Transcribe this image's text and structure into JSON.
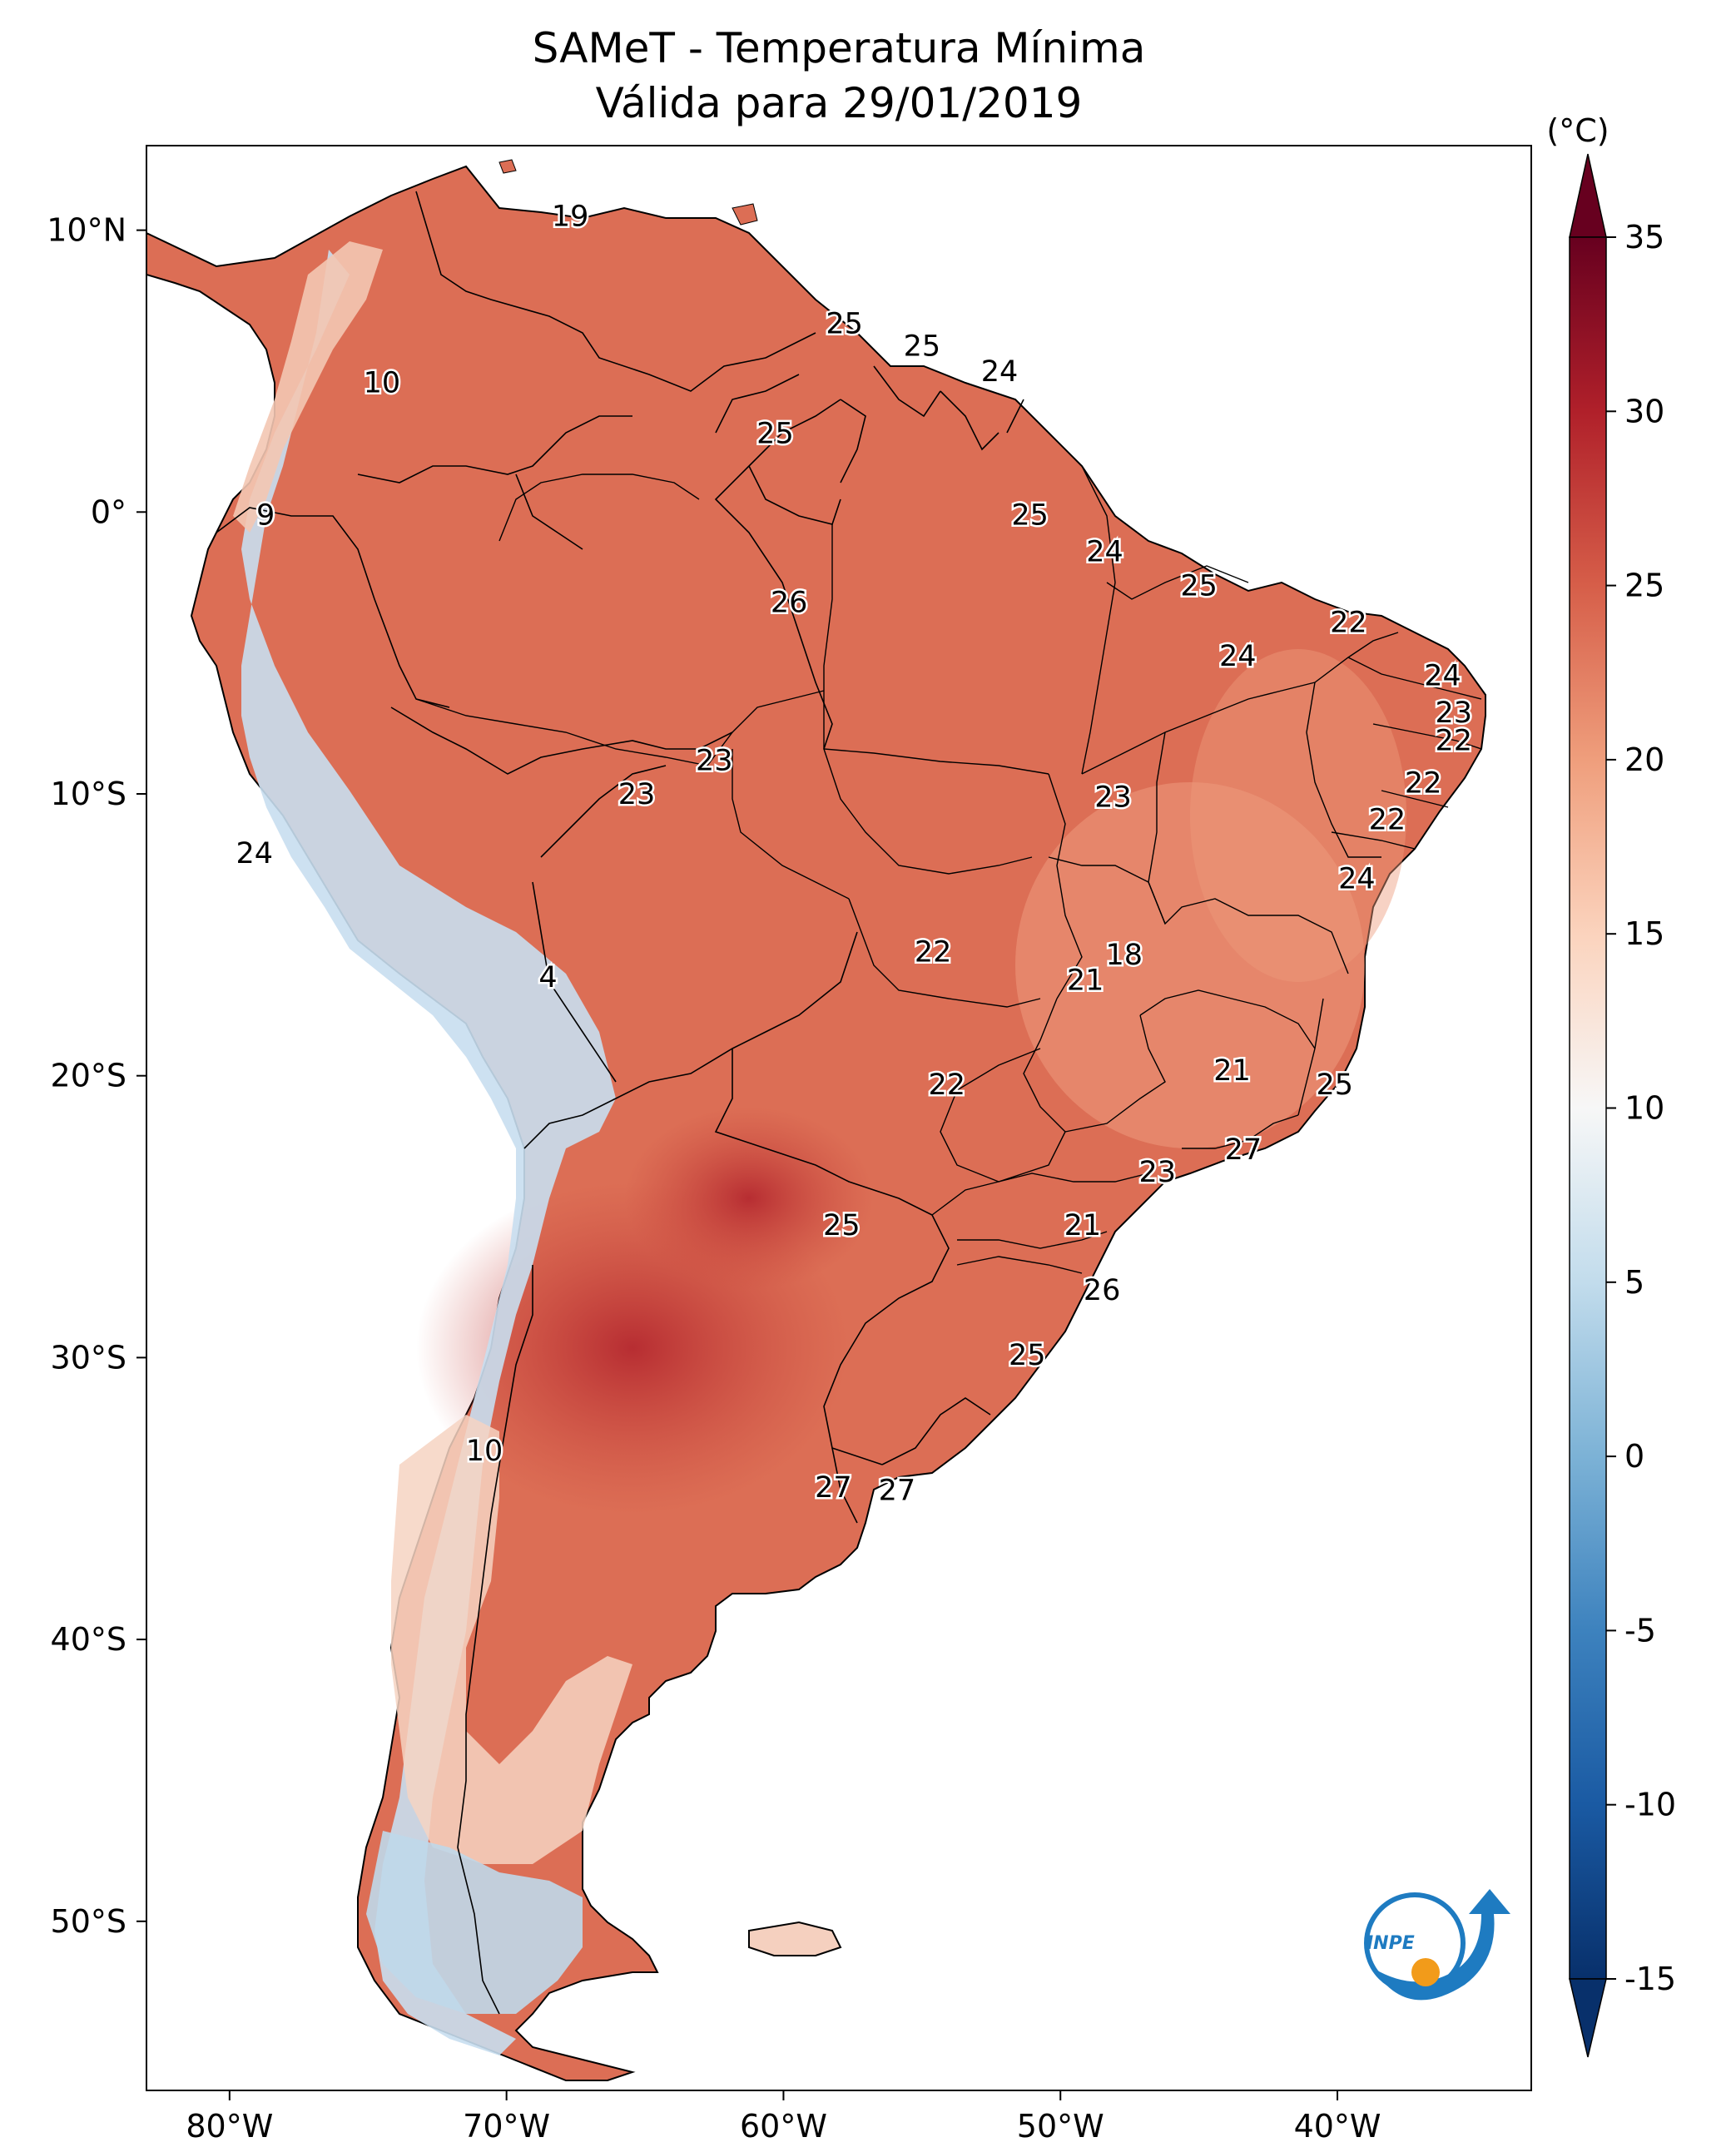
{
  "title_line1": "SAMeT - Temperatura Mínima",
  "title_line2": "Válida para 29/01/2019",
  "colorbar": {
    "unit_label": "(°C)",
    "ticks": [
      "35",
      "30",
      "25",
      "20",
      "15",
      "10",
      "5",
      "0",
      "-5",
      "-10",
      "-15"
    ],
    "min": -15,
    "max": 35,
    "colors": {
      "-15": "#08306b",
      "-10": "#1a5aa3",
      "-5": "#3d82be",
      "0": "#7cb2d6",
      "5": "#c2dcec",
      "10": "#f7f7f7",
      "15": "#fbd3bd",
      "20": "#ef9e7c",
      "25": "#d65e49",
      "30": "#b0202a",
      "35": "#67001f"
    }
  },
  "map": {
    "lon_range": [
      -83,
      -33
    ],
    "lat_range": [
      -56,
      13
    ],
    "lon_ticks": [
      "80°W",
      "70°W",
      "60°W",
      "50°W",
      "40°W"
    ],
    "lat_ticks": [
      "10°N",
      "0°",
      "10°S",
      "20°S",
      "30°S",
      "40°S",
      "50°S"
    ],
    "land_colors": {
      "warm": "#dc6e55",
      "hot": "#c9463c",
      "cool": "#f3c7b2",
      "cold": "#bcd7ea",
      "mild": "#f0a98b"
    }
  },
  "logo": {
    "text": "INPE",
    "blue": "#1e7bc1",
    "orange": "#f29b1a"
  },
  "station_labels": [
    {
      "value": "19",
      "lon": -67.7,
      "lat": 10.5
    },
    {
      "value": "10",
      "lon": -74.5,
      "lat": 4.6
    },
    {
      "value": "25",
      "lon": -57.8,
      "lat": 6.7
    },
    {
      "value": "25",
      "lon": -55.0,
      "lat": 5.9
    },
    {
      "value": "24",
      "lon": -52.2,
      "lat": 5.0
    },
    {
      "value": "25",
      "lon": -60.3,
      "lat": 2.8
    },
    {
      "value": "9",
      "lon": -78.7,
      "lat": -0.1
    },
    {
      "value": "25",
      "lon": -51.1,
      "lat": -0.1
    },
    {
      "value": "24",
      "lon": -48.4,
      "lat": -1.4
    },
    {
      "value": "26",
      "lon": -59.8,
      "lat": -3.2
    },
    {
      "value": "25",
      "lon": -45.0,
      "lat": -2.6
    },
    {
      "value": "22",
      "lon": -39.6,
      "lat": -3.9
    },
    {
      "value": "24",
      "lon": -43.6,
      "lat": -5.1
    },
    {
      "value": "24",
      "lon": -36.2,
      "lat": -5.8
    },
    {
      "value": "23",
      "lon": -35.8,
      "lat": -7.1
    },
    {
      "value": "22",
      "lon": -35.8,
      "lat": -8.1
    },
    {
      "value": "23",
      "lon": -62.5,
      "lat": -8.8
    },
    {
      "value": "23",
      "lon": -65.3,
      "lat": -10.0
    },
    {
      "value": "23",
      "lon": -48.1,
      "lat": -10.1
    },
    {
      "value": "22",
      "lon": -36.9,
      "lat": -9.6
    },
    {
      "value": "22",
      "lon": -38.2,
      "lat": -10.9
    },
    {
      "value": "24",
      "lon": -79.1,
      "lat": -12.1
    },
    {
      "value": "24",
      "lon": -39.3,
      "lat": -13.0
    },
    {
      "value": "4",
      "lon": -68.5,
      "lat": -16.5
    },
    {
      "value": "22",
      "lon": -54.6,
      "lat": -15.6
    },
    {
      "value": "18",
      "lon": -47.7,
      "lat": -15.7
    },
    {
      "value": "21",
      "lon": -49.1,
      "lat": -16.6
    },
    {
      "value": "22",
      "lon": -54.1,
      "lat": -20.3
    },
    {
      "value": "21",
      "lon": -43.8,
      "lat": -19.8
    },
    {
      "value": "25",
      "lon": -40.1,
      "lat": -20.3
    },
    {
      "value": "27",
      "lon": -43.4,
      "lat": -22.6
    },
    {
      "value": "23",
      "lon": -46.5,
      "lat": -23.4
    },
    {
      "value": "25",
      "lon": -57.9,
      "lat": -25.3
    },
    {
      "value": "21",
      "lon": -49.2,
      "lat": -25.3
    },
    {
      "value": "26",
      "lon": -48.5,
      "lat": -27.6
    },
    {
      "value": "25",
      "lon": -51.2,
      "lat": -29.9
    },
    {
      "value": "10",
      "lon": -70.8,
      "lat": -33.3
    },
    {
      "value": "27",
      "lon": -58.2,
      "lat": -34.6
    },
    {
      "value": "27",
      "lon": -55.9,
      "lat": -34.7
    }
  ]
}
